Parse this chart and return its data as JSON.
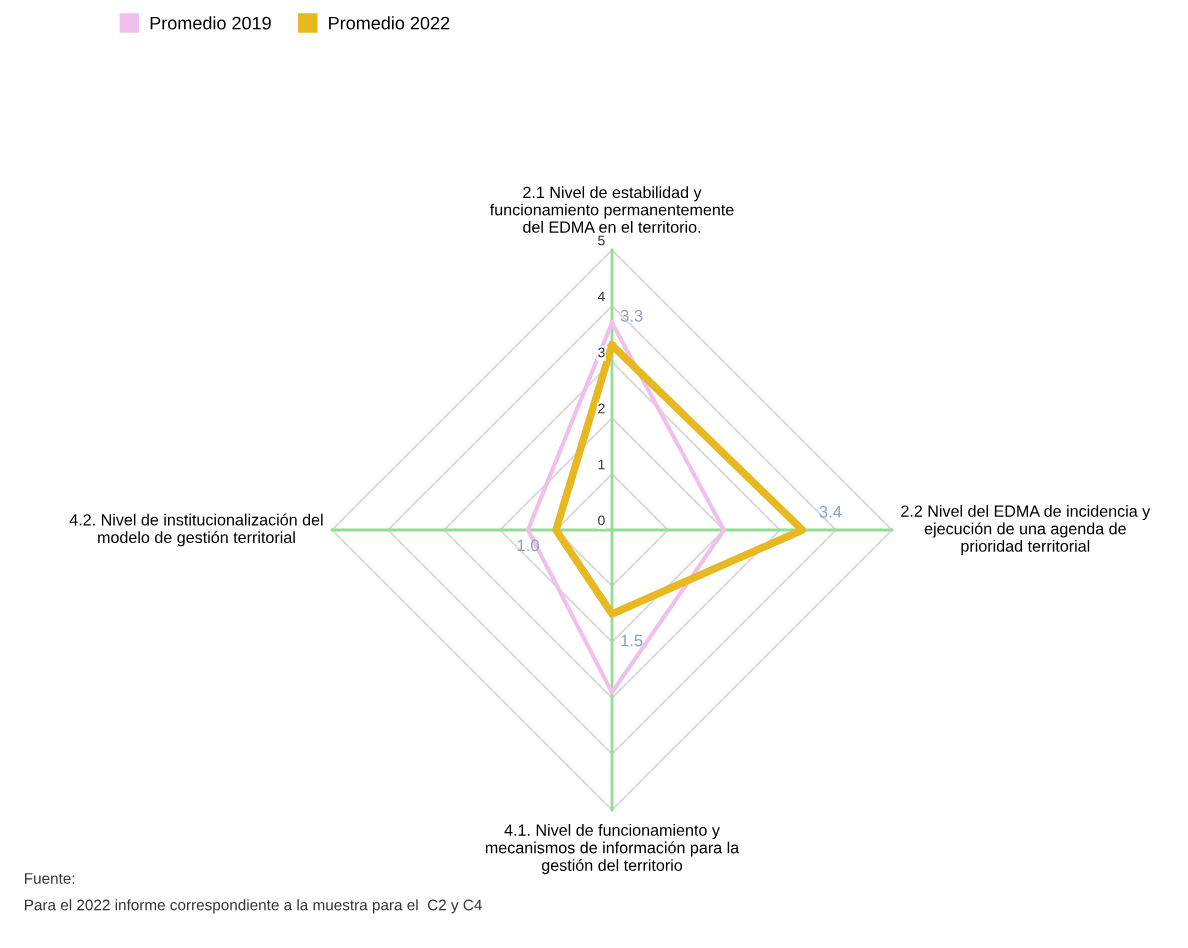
{
  "chart_data": {
    "type": "radar",
    "categories": [
      "2.1 Nivel de estabilidad y\nfuncionamiento permanentemente\ndel EDMA en el territorio.",
      "2.2 Nivel del EDMA de incidencia y\nejecución de una agenda de\nprioridad territorial",
      "4.1. Nivel de funcionamiento y\nmecanismos de información para la\ngestión del territorio",
      "4.2. Nivel de institucionalización del\nmodelo de gestión territorial"
    ],
    "series": [
      {
        "name": "Promedio 2019",
        "color": "#f0c0ec",
        "values": [
          3.7,
          2.0,
          2.9,
          1.5
        ]
      },
      {
        "name": "Promedio 2022",
        "color": "#e8b820",
        "values": [
          3.3,
          3.4,
          1.5,
          1.0
        ],
        "value_labels": [
          "3.3",
          "3.4",
          "1.5",
          "1.0"
        ]
      }
    ],
    "ylim": [
      0,
      5
    ],
    "yticks": [
      0,
      1,
      2,
      3,
      4,
      5
    ],
    "grid": true,
    "legend": "top left",
    "annotations": [
      "Fuente:",
      "Para el 2022 informe correspondiente a la muestra para el  C2 y C4"
    ]
  }
}
